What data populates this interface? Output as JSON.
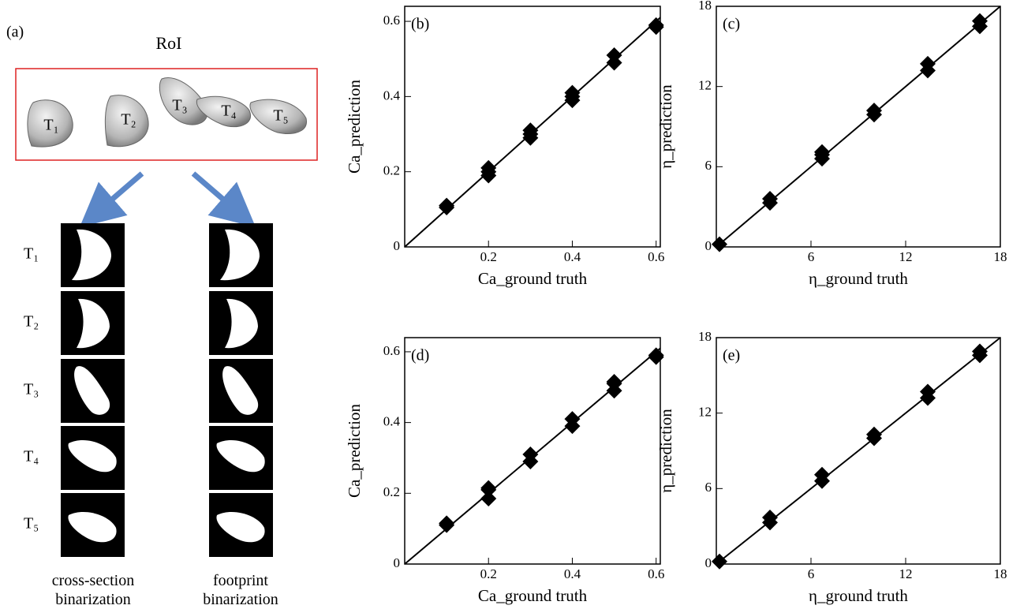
{
  "panel_a": {
    "label": "(a)",
    "roi_title": "RoI",
    "roi_labels": [
      "T₁",
      "T₂",
      "T₃",
      "T₄",
      "T₅"
    ],
    "row_labels": [
      "T₁",
      "T₂",
      "T₃",
      "T₄",
      "T₅"
    ],
    "left_caption": "cross-section binarization",
    "right_caption": "footprint binarization"
  },
  "chart_data": [
    {
      "type": "scatter",
      "panel_label": "(b)",
      "xlabel": "Ca_ground truth",
      "ylabel": "Ca_prediction",
      "color": "#000000",
      "x": [
        0.1,
        0.1,
        0.2,
        0.2,
        0.2,
        0.3,
        0.3,
        0.3,
        0.4,
        0.4,
        0.4,
        0.5,
        0.5,
        0.6,
        0.6
      ],
      "y": [
        0.105,
        0.11,
        0.19,
        0.2,
        0.21,
        0.29,
        0.3,
        0.31,
        0.39,
        0.4,
        0.41,
        0.49,
        0.51,
        0.585,
        0.59
      ],
      "xlim": [
        0,
        0.61
      ],
      "ylim": [
        0,
        0.64
      ],
      "xticks": [
        0.2,
        0.4,
        0.6
      ],
      "yticks": [
        0,
        0.2,
        0.4,
        0.6
      ],
      "reference_line": {
        "x": [
          0,
          0.61
        ],
        "y": [
          0,
          0.61
        ]
      }
    },
    {
      "type": "scatter",
      "panel_label": "(c)",
      "xlabel": "η_ground truth",
      "ylabel": "η_prediction",
      "color": "#000000",
      "x": [
        0.2,
        3.4,
        3.4,
        6.7,
        6.7,
        6.7,
        10,
        10,
        13.4,
        13.4,
        16.7,
        16.7
      ],
      "y": [
        0.2,
        3.3,
        3.6,
        6.6,
        6.9,
        7.1,
        9.9,
        10.2,
        13.2,
        13.7,
        16.5,
        16.9
      ],
      "xlim": [
        0,
        18
      ],
      "ylim": [
        0,
        18
      ],
      "xticks": [
        6,
        12,
        18
      ],
      "yticks": [
        0,
        6,
        12,
        18
      ],
      "reference_line": {
        "x": [
          0,
          18
        ],
        "y": [
          0,
          18
        ]
      }
    },
    {
      "type": "scatter",
      "panel_label": "(d)",
      "xlabel": "Ca_ground truth",
      "ylabel": "Ca_prediction",
      "color": "#000000",
      "x": [
        0.1,
        0.1,
        0.2,
        0.2,
        0.2,
        0.3,
        0.3,
        0.4,
        0.4,
        0.5,
        0.5,
        0.5,
        0.6,
        0.6
      ],
      "y": [
        0.11,
        0.115,
        0.185,
        0.21,
        0.215,
        0.29,
        0.31,
        0.39,
        0.41,
        0.49,
        0.51,
        0.515,
        0.585,
        0.59
      ],
      "xlim": [
        0,
        0.61
      ],
      "ylim": [
        0,
        0.64
      ],
      "xticks": [
        0.2,
        0.4,
        0.6
      ],
      "yticks": [
        0,
        0.2,
        0.4,
        0.6
      ],
      "reference_line": {
        "x": [
          0,
          0.61
        ],
        "y": [
          0,
          0.61
        ]
      }
    },
    {
      "type": "scatter",
      "panel_label": "(e)",
      "xlabel": "η_ground truth",
      "ylabel": "η_prediction",
      "color": "#000000",
      "x": [
        0.2,
        3.4,
        3.4,
        6.7,
        6.7,
        10,
        10,
        13.4,
        13.4,
        16.7,
        16.7
      ],
      "y": [
        0.2,
        3.3,
        3.7,
        6.6,
        7.1,
        10,
        10.3,
        13.2,
        13.7,
        16.6,
        16.9
      ],
      "xlim": [
        0,
        18
      ],
      "ylim": [
        0,
        18
      ],
      "xticks": [
        6,
        12,
        18
      ],
      "yticks": [
        0,
        6,
        12,
        18
      ],
      "reference_line": {
        "x": [
          0,
          18
        ],
        "y": [
          0,
          18
        ]
      }
    }
  ]
}
